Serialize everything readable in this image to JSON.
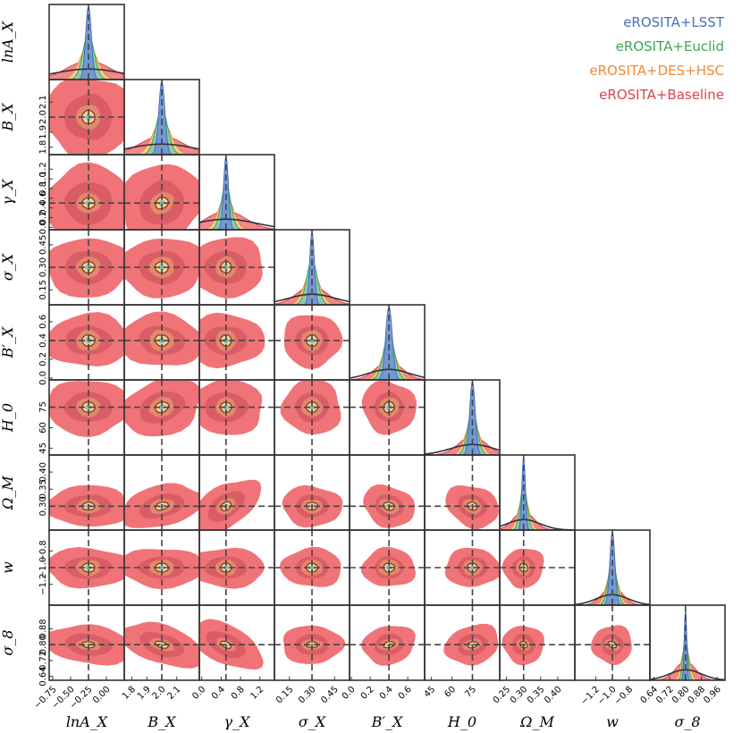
{
  "chart_data": {
    "type": "corner",
    "parameters": [
      {
        "key": "lnAX",
        "label": "lnA_X",
        "range": [
          -0.8,
          0.25
        ],
        "ticks": [
          -0.75,
          -0.5,
          -0.25,
          0.0
        ],
        "tick_labels": [
          "−0.75",
          "−0.50",
          "−0.25",
          "0.00"
        ],
        "fiducial": -0.25,
        "sigma": [
          0.3,
          0.12,
          0.08,
          0.04
        ]
      },
      {
        "key": "BX",
        "label": "B_X",
        "range": [
          1.75,
          2.25
        ],
        "ticks": [
          1.8,
          1.9,
          2.0,
          2.1
        ],
        "tick_labels": [
          "1.8",
          "1.9",
          "2.0",
          "2.1"
        ],
        "fiducial": 2.0,
        "sigma": [
          0.14,
          0.06,
          0.04,
          0.02
        ]
      },
      {
        "key": "gammaX",
        "label": "γ_X",
        "range": [
          -0.05,
          1.5
        ],
        "ticks": [
          0.0,
          0.4,
          0.8,
          1.2
        ],
        "tick_labels": [
          "0.0",
          "0.4",
          "0.8",
          "1.2"
        ],
        "fiducial": 0.5,
        "sigma": [
          0.4,
          0.15,
          0.1,
          0.05
        ]
      },
      {
        "key": "sigmaX",
        "label": "σ_X",
        "range": [
          0.05,
          0.55
        ],
        "ticks": [
          0.15,
          0.3,
          0.45
        ],
        "tick_labels": [
          "0.15",
          "0.30",
          "0.45"
        ],
        "fiducial": 0.3,
        "sigma": [
          0.1,
          0.05,
          0.035,
          0.015
        ]
      },
      {
        "key": "BpX",
        "label": "B′_X",
        "range": [
          -0.02,
          0.78
        ],
        "ticks": [
          0.0,
          0.2,
          0.4,
          0.6
        ],
        "tick_labels": [
          "0.0",
          "0.2",
          "0.4",
          "0.6"
        ],
        "fiducial": 0.4,
        "sigma": [
          0.14,
          0.08,
          0.06,
          0.035
        ]
      },
      {
        "key": "H0",
        "label": "H_0",
        "range": [
          40,
          95
        ],
        "ticks": [
          45,
          60,
          75
        ],
        "tick_labels": [
          "45",
          "60",
          "75"
        ],
        "fiducial": 75,
        "sigma": [
          10,
          5,
          3.5,
          2
        ]
      },
      {
        "key": "OmegaM",
        "label": "Ω_M",
        "range": [
          0.23,
          0.45
        ],
        "ticks": [
          0.25,
          0.3,
          0.35,
          0.4
        ],
        "tick_labels": [
          "0.25",
          "0.30",
          "0.35",
          "0.40"
        ],
        "fiducial": 0.3,
        "sigma": [
          0.03,
          0.015,
          0.01,
          0.005
        ]
      },
      {
        "key": "w",
        "label": "w",
        "range": [
          -1.45,
          -0.55
        ],
        "ticks": [
          -1.2,
          -1.0,
          -0.8
        ],
        "tick_labels": [
          "−1.2",
          "−1.0",
          "−0.8"
        ],
        "fiducial": -1.0,
        "sigma": [
          0.12,
          0.07,
          0.05,
          0.03
        ]
      },
      {
        "key": "sigma8",
        "label": "σ_8",
        "range": [
          0.62,
          1.0
        ],
        "ticks": [
          0.64,
          0.72,
          0.8,
          0.88,
          0.96
        ],
        "tick_labels": [
          "0.64",
          "0.72",
          "0.80",
          "0.88",
          "0.96"
        ],
        "fiducial": 0.8,
        "sigma": [
          0.05,
          0.02,
          0.012,
          0.006
        ]
      }
    ],
    "y_tick_overrides": {
      "BX": {
        "ticks": [
          1.8,
          1.9,
          2.0,
          2.1
        ],
        "tick_labels": [
          "1.8",
          "1.9",
          "2.0",
          "2.1"
        ]
      },
      "gammaX": {
        "ticks": [
          0.0,
          0.2,
          0.4,
          0.6,
          0.8,
          1.0,
          1.2
        ],
        "tick_labels": [
          "0.0",
          "0.2",
          "0.4",
          "0.6",
          "0.8",
          "1.0",
          "1.2"
        ]
      },
      "sigmaX": {
        "ticks": [
          0.15,
          0.3,
          0.45
        ],
        "tick_labels": [
          "0.15",
          "0.30",
          "0.45"
        ]
      },
      "BpX": {
        "ticks": [
          0.0,
          0.2,
          0.4,
          0.6
        ],
        "tick_labels": [
          "0.0",
          "0.2",
          "0.4",
          "0.6"
        ]
      },
      "H0": {
        "ticks": [
          45,
          60,
          75
        ],
        "tick_labels": [
          "45",
          "60",
          "75"
        ]
      },
      "OmegaM": {
        "ticks": [
          0.3,
          0.35,
          0.4
        ],
        "tick_labels": [
          "0.30",
          "0.35",
          "0.40"
        ]
      },
      "w": {
        "ticks": [
          -1.2,
          -1.0,
          -0.8
        ],
        "tick_labels": [
          "−1.2",
          "−1.0",
          "−0.8"
        ]
      },
      "sigma8": {
        "ticks": [
          0.64,
          0.72,
          0.8,
          0.88
        ],
        "tick_labels": [
          "0.64",
          "0.72",
          "0.80",
          "0.88"
        ]
      }
    },
    "series": [
      {
        "name": "eROSITA+Baseline",
        "color": "#d9434f",
        "fill": "#f07377"
      },
      {
        "name": "eROSITA+DES+HSC",
        "color": "#ef8a3a",
        "fill": "#fdd68a"
      },
      {
        "name": "eROSITA+Euclid",
        "color": "#3fa653",
        "fill": "#7fc7b4"
      },
      {
        "name": "eROSITA+LSST",
        "color": "#4a6fb8",
        "fill": "#6f93d6"
      }
    ],
    "legend": {
      "position": "top-right",
      "order": [
        "eROSITA+LSST",
        "eROSITA+Euclid",
        "eROSITA+DES+HSC",
        "eROSITA+Baseline"
      ]
    },
    "prior_curve_color": "#333333",
    "truth_line_color": "#444444"
  }
}
